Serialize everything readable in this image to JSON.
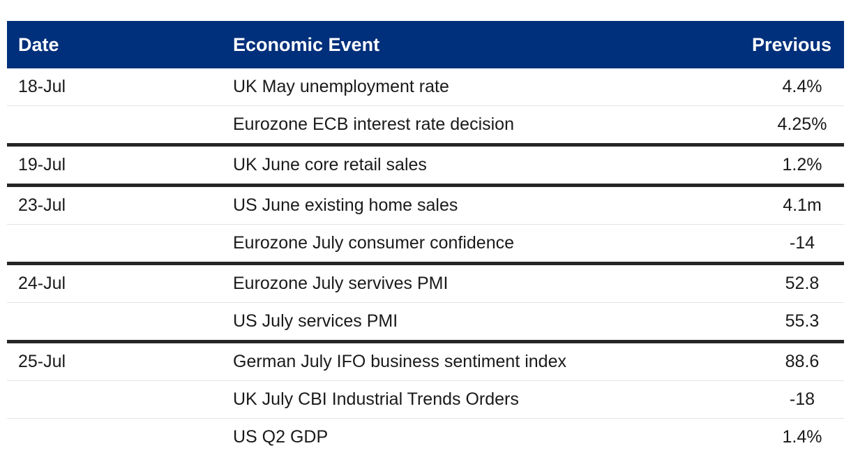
{
  "table": {
    "headers": {
      "date": "Date",
      "event": "Economic Event",
      "previous": "Previous"
    },
    "groups": [
      {
        "date": "18-Jul",
        "rows": [
          {
            "event": "UK May unemployment rate",
            "previous": "4.4%"
          },
          {
            "event": "Eurozone ECB interest rate decision",
            "previous": "4.25%"
          }
        ]
      },
      {
        "date": "19-Jul",
        "rows": [
          {
            "event": "UK June core retail sales",
            "previous": "1.2%"
          }
        ]
      },
      {
        "date": "23-Jul",
        "rows": [
          {
            "event": "US June existing home sales",
            "previous": "4.1m"
          },
          {
            "event": "Eurozone July consumer confidence",
            "previous": "-14"
          }
        ]
      },
      {
        "date": "24-Jul",
        "rows": [
          {
            "event": "Eurozone July servives PMI",
            "previous": "52.8"
          },
          {
            "event": "US July services PMI",
            "previous": "55.3"
          }
        ]
      },
      {
        "date": "25-Jul",
        "rows": [
          {
            "event": "German July IFO business sentiment index",
            "previous": "88.6"
          },
          {
            "event": "UK July CBI Industrial Trends Orders",
            "previous": "-18"
          },
          {
            "event": "US Q2 GDP",
            "previous": "1.4%"
          }
        ]
      }
    ]
  }
}
